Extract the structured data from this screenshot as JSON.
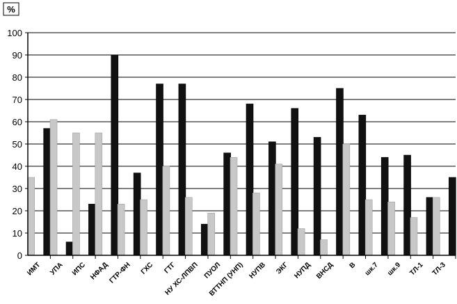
{
  "chart_data": {
    "type": "bar",
    "ylabel": "%",
    "ylim": [
      0,
      100
    ],
    "yticks": [
      0,
      10,
      20,
      30,
      40,
      50,
      60,
      70,
      80,
      90,
      100
    ],
    "grid": true,
    "categories": [
      "ИМТ",
      "УПА",
      "ИПС",
      "НФАД",
      "ГТР-ФН",
      "ГХС",
      "ГТГ",
      "НУ ХС-ЛПВП",
      "ПУОЛ",
      "ВТТНП (УНП)",
      "НУПВ",
      "ЭКГ",
      "НУПД",
      "ВНСД",
      "В",
      "шк.7",
      "шк.9",
      "ТЛ-1",
      "ТЛ-3"
    ],
    "series": [
      {
        "values": [
          35,
          61,
          55,
          55,
          23,
          25,
          40,
          26,
          19,
          44,
          28,
          41,
          12,
          7,
          50,
          25,
          24,
          17,
          26
        ],
        "color": "#c8c8c8"
      },
      {
        "values": [
          57,
          6,
          23,
          90,
          37,
          77,
          77,
          14,
          46,
          68,
          51,
          66,
          53,
          75,
          63,
          44,
          45,
          26,
          35
        ],
        "color": "#111111"
      }
    ]
  }
}
